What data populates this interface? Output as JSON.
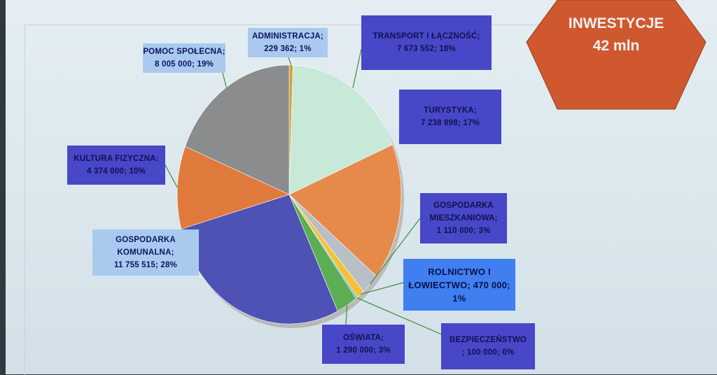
{
  "badge": {
    "title": "INWESTYCJE",
    "amount": "42 mln",
    "color": "#d0582e"
  },
  "chart_data": {
    "type": "pie",
    "title": "",
    "slices": [
      {
        "name": "ADMINISTRACJA;",
        "label": "229 362; 1%",
        "value": 229362,
        "percent": 1,
        "color": "#d2a33a"
      },
      {
        "name": "TRANSPORT I ŁĄCZNOŚĆ;",
        "label": "7 673 552; 18%",
        "value": 7673552,
        "percent": 18,
        "color": "#c9e9d8"
      },
      {
        "name": "TURYSTYKA;",
        "label": "7 238 898; 17%",
        "value": 7238898,
        "percent": 17,
        "color": "#e68a4c"
      },
      {
        "name": "GOSPODARKA MIESZKANIOWA;",
        "label": "1 110 000; 3%",
        "value": 1110000,
        "percent": 3,
        "color": "#b8bfc6"
      },
      {
        "name": "ROLNICTWO I ŁOWIECTWO;",
        "label": "470 000; 1%",
        "value": 470000,
        "percent": 1,
        "color": "#f2c233"
      },
      {
        "name": "BEZPIECZEŃSTWO",
        "label": "; 100 000; 0%",
        "value": 100000,
        "percent": 0,
        "color": "#7fb0e0"
      },
      {
        "name": "OŚWIATA;",
        "label": "1 290 000; 3%",
        "value": 1290000,
        "percent": 3,
        "color": "#5cae55"
      },
      {
        "name": "GOSPODARKA KOMUNALNA;",
        "label": "11 755 515; 28%",
        "value": 11755515,
        "percent": 28,
        "color": "#4e52b4"
      },
      {
        "name": "KULTURA FIZYCZNA;",
        "label": "4 374 000; 10%",
        "value": 4374000,
        "percent": 10,
        "color": "#e07a3c"
      },
      {
        "name": "POMOC SPOŁECNA;",
        "label": "8 005 000; 19%",
        "value": 8005000,
        "percent": 19,
        "color": "#8a8c8e"
      }
    ]
  },
  "labels": {
    "administracja": [
      "ADMINISTRACJA;",
      "229 362; 1%"
    ],
    "transport": [
      "TRANSPORT I ŁĄCZNOŚĆ;",
      "7 673 552; 18%"
    ],
    "turystyka": [
      "TURYSTYKA;",
      "7 238 898; 17%"
    ],
    "mieszkaniowa": [
      "GOSPODARKA",
      "MIESZKANIOWA;",
      "1 110 000; 3%"
    ],
    "rolnictwo": [
      "ROLNICTWO I",
      "ŁOWIECTWO; 470 000;",
      "1%"
    ],
    "bezpieczenstwo": [
      "BEZPIECZEŃSTWO",
      "; 100 000; 0%"
    ],
    "oswiata": [
      "OŚWIATA;",
      "1 290 000; 3%"
    ],
    "komunalna": [
      "GOSPODARKA",
      "KOMUNALNA;",
      "11 755 515; 28%"
    ],
    "kultura": [
      "KULTURA FIZYCZNA;",
      "4 374 000; 10%"
    ],
    "pomoc": [
      "POMOC SPOŁECNA;",
      "8 005 000; 19%"
    ]
  }
}
